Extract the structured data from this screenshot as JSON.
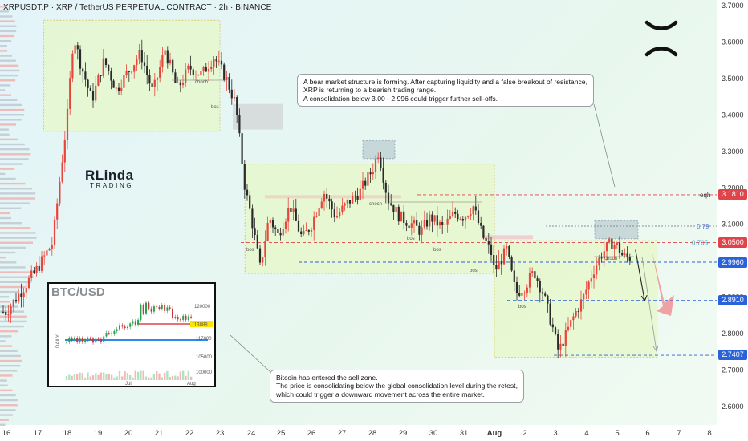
{
  "header": {
    "title": "XRPUSDT.P · XRP / TetherUS PERPETUAL CONTRACT · 2h · BINANCE"
  },
  "colors": {
    "bull": "#e8453c",
    "bear": "#2a2a2a",
    "zone_fill": "#e6f7c8",
    "zone_border": "#d7c24e",
    "level_red": "#e0434a",
    "level_blue": "#2a62d9",
    "level_gray": "#8890a0"
  },
  "annotations": {
    "top_note": [
      "A bear market structure is forming. After capturing liquidity and a false breakout of resistance,",
      "XRP is returning to a bearish trading range.",
      "A consolidation below 3.00 - 2.996 could trigger further sell-offs."
    ],
    "bottom_note": [
      "Bitcoin has entered the sell zone.",
      "The price is consolidating below the global consolidation level during the retest,",
      "which could trigger a downward movement across the entire market."
    ]
  },
  "logo": {
    "big": "RLinda",
    "small": "TRADING"
  },
  "level_labels": {
    "eqh": "eqh",
    "fib_79": "0.79",
    "fib_705": "0.705"
  },
  "structure_labels": {
    "choch": "choch",
    "bos": "bos"
  },
  "price_tags": [
    {
      "value": "3.1810",
      "color": "#e0434a"
    },
    {
      "value": "3.0500",
      "color": "#e0434a"
    },
    {
      "value": "2.9960",
      "color": "#2a62d9"
    },
    {
      "value": "2.8910",
      "color": "#2a62d9"
    },
    {
      "value": "2.7407",
      "color": "#2a62d9"
    }
  ],
  "inset": {
    "title": "BTC/USD",
    "side_label": "DAILY",
    "y_ticks": [
      "120000",
      "117000",
      "105000",
      "100000"
    ],
    "price_tag": "113888",
    "x_ticks": [
      "Jul",
      "Aug"
    ]
  },
  "chart_data": {
    "type": "candlestick",
    "title": "XRPUSDT.P · XRP / TetherUS PERPETUAL CONTRACT · 2h · BINANCE",
    "y_ticks": [
      "3.7000",
      "3.6000",
      "3.5000",
      "3.4000",
      "3.3000",
      "3.2000",
      "3.1000",
      "3.0000",
      "2.9000",
      "2.8000",
      "2.7000",
      "2.6000"
    ],
    "x_ticks": [
      "16",
      "17",
      "18",
      "19",
      "20",
      "21",
      "22",
      "23",
      "24",
      "25",
      "26",
      "27",
      "28",
      "29",
      "30",
      "31",
      "Aug",
      "2",
      "3",
      "4",
      "5",
      "6",
      "7",
      "8"
    ],
    "ylim": [
      2.56,
      3.715
    ],
    "price_path": [
      [
        "16",
        2.86
      ],
      [
        "17",
        2.98
      ],
      [
        "17.5",
        3.05
      ],
      [
        "18",
        3.4
      ],
      [
        "18.2",
        3.62
      ],
      [
        "18.4",
        3.55
      ],
      [
        "18.8",
        3.44
      ],
      [
        "19.2",
        3.55
      ],
      [
        "19.6",
        3.47
      ],
      [
        "20",
        3.52
      ],
      [
        "20.4",
        3.57
      ],
      [
        "20.8",
        3.46
      ],
      [
        "21.2",
        3.58
      ],
      [
        "21.6",
        3.47
      ],
      [
        "22",
        3.53
      ],
      [
        "22.4",
        3.51
      ],
      [
        "22.8",
        3.56
      ],
      [
        "23.2",
        3.5
      ],
      [
        "23.5",
        3.43
      ],
      [
        "23.8",
        3.2
      ],
      [
        "24",
        3.12
      ],
      [
        "24.3",
        2.98
      ],
      [
        "24.6",
        3.12
      ],
      [
        "24.9",
        3.07
      ],
      [
        "25.3",
        3.15
      ],
      [
        "25.7",
        3.06
      ],
      [
        "26",
        3.1
      ],
      [
        "26.4",
        3.19
      ],
      [
        "26.8",
        3.12
      ],
      [
        "27.2",
        3.16
      ],
      [
        "27.6",
        3.19
      ],
      [
        "28",
        3.25
      ],
      [
        "28.2",
        3.3
      ],
      [
        "28.5",
        3.17
      ],
      [
        "28.9",
        3.12
      ],
      [
        "29.3",
        3.1
      ],
      [
        "29.6",
        3.08
      ],
      [
        "29.9",
        3.12
      ],
      [
        "30.3",
        3.09
      ],
      [
        "30.7",
        3.13
      ],
      [
        "31",
        3.12
      ],
      [
        "31.3",
        3.15
      ],
      [
        "31.6",
        3.07
      ],
      [
        "31.9",
        3.02
      ],
      [
        "Aug",
        2.97
      ],
      [
        "1.4",
        3.03
      ],
      [
        "1.7",
        2.91
      ],
      [
        "2",
        2.93
      ],
      [
        "2.3",
        2.97
      ],
      [
        "2.6",
        2.91
      ],
      [
        "2.9",
        2.82
      ],
      [
        "3.1",
        2.75
      ],
      [
        "3.3",
        2.79
      ],
      [
        "3.6",
        2.85
      ],
      [
        "3.9",
        2.9
      ],
      [
        "4.2",
        2.97
      ],
      [
        "4.5",
        3.02
      ],
      [
        "4.8",
        3.05
      ],
      [
        "5",
        3.04
      ],
      [
        "5.2",
        3.01
      ]
    ],
    "levels": [
      {
        "label": "eqh",
        "value": 3.181
      },
      {
        "label": "0.79",
        "value": 3.095
      },
      {
        "label": "0.705",
        "value": 3.05
      },
      {
        "label": "",
        "value": 2.996
      },
      {
        "label": "",
        "value": 2.891
      },
      {
        "label": "",
        "value": 2.7407
      }
    ],
    "zones": [
      {
        "x": [
          "17.2",
          "23"
        ],
        "y": [
          3.355,
          3.66
        ]
      },
      {
        "x": [
          "23.8",
          "Aug"
        ],
        "y": [
          2.965,
          3.265
        ]
      },
      {
        "x": [
          "Aug",
          "6.3"
        ],
        "y": [
          2.735,
          3.055
        ]
      }
    ],
    "projection": {
      "from": [
        "5.6",
        3.03
      ],
      "to": [
        "5.9",
        2.89
      ]
    }
  }
}
